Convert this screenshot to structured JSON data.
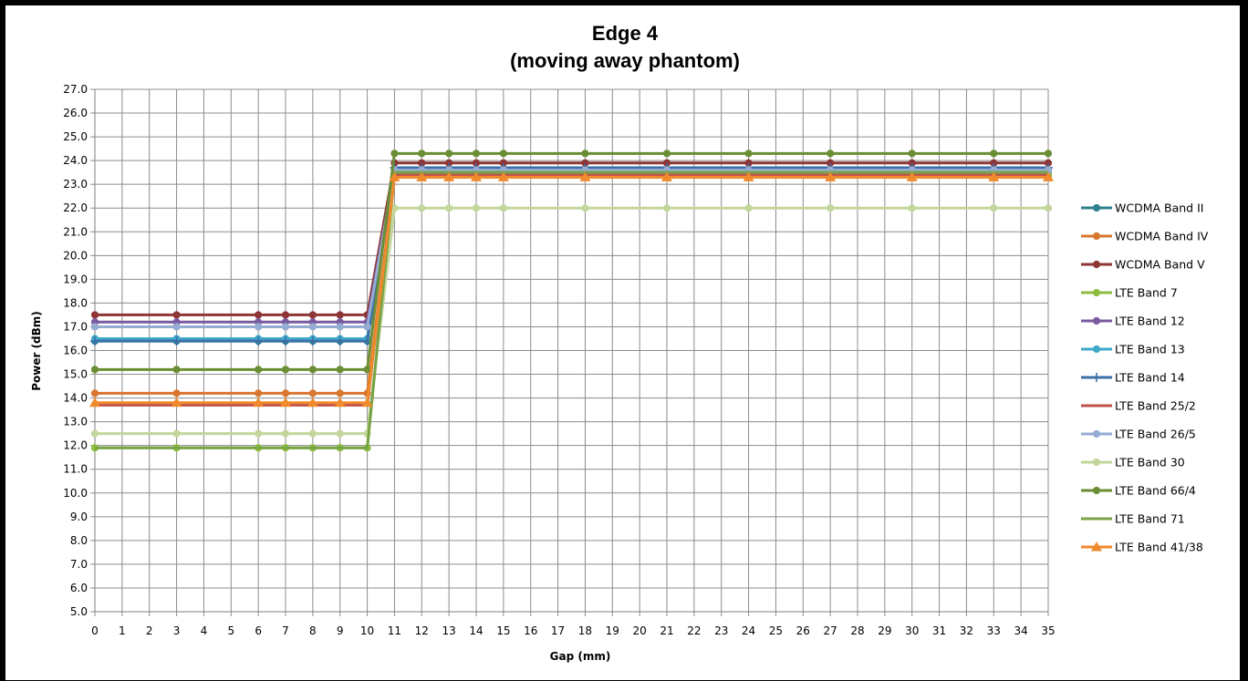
{
  "chart_data": {
    "type": "line",
    "title": "Edge 4",
    "subtitle": "(moving away phantom)",
    "xlabel": "Gap (mm)",
    "ylabel": "Power (dBm)",
    "ylim": [
      5.0,
      27.0
    ],
    "ytick_step": 1.0,
    "categories": [
      "0",
      "1",
      "2",
      "3",
      "4",
      "5",
      "6",
      "7",
      "8",
      "9",
      "10",
      "11",
      "12",
      "13",
      "14",
      "15",
      "16",
      "17",
      "18",
      "19",
      "20",
      "21",
      "22",
      "23",
      "24",
      "25",
      "26",
      "27",
      "28",
      "29",
      "30",
      "31",
      "32",
      "33",
      "34",
      "35"
    ],
    "grid": true,
    "legend_position": "right",
    "series": [
      {
        "name": "WCDMA Band II",
        "color": "#2e7f8f",
        "marker": "circle",
        "x": [
          0,
          3,
          6,
          7,
          8,
          9,
          10,
          11,
          12,
          13,
          14,
          15,
          18,
          21,
          24,
          27,
          30,
          33,
          35
        ],
        "y": [
          16.4,
          16.4,
          16.4,
          16.4,
          16.4,
          16.4,
          16.4,
          23.5,
          23.5,
          23.5,
          23.5,
          23.5,
          23.5,
          23.5,
          23.5,
          23.5,
          23.5,
          23.5,
          23.5
        ]
      },
      {
        "name": "WCDMA Band IV",
        "color": "#d9762f",
        "marker": "circle",
        "x": [
          0,
          3,
          6,
          7,
          8,
          9,
          10,
          11,
          12,
          13,
          14,
          15,
          18,
          21,
          24,
          27,
          30,
          33,
          35
        ],
        "y": [
          14.2,
          14.2,
          14.2,
          14.2,
          14.2,
          14.2,
          14.2,
          23.3,
          23.3,
          23.3,
          23.3,
          23.3,
          23.3,
          23.3,
          23.3,
          23.3,
          23.3,
          23.3,
          23.3
        ]
      },
      {
        "name": "WCDMA Band V",
        "color": "#8e3535",
        "marker": "circle",
        "x": [
          0,
          3,
          6,
          7,
          8,
          9,
          10,
          11,
          12,
          13,
          14,
          15,
          18,
          21,
          24,
          27,
          30,
          33,
          35
        ],
        "y": [
          17.5,
          17.5,
          17.5,
          17.5,
          17.5,
          17.5,
          17.5,
          23.9,
          23.9,
          23.9,
          23.9,
          23.9,
          23.9,
          23.9,
          23.9,
          23.9,
          23.9,
          23.9,
          23.9
        ]
      },
      {
        "name": "LTE Band 7",
        "color": "#8cbd3f",
        "marker": "circle",
        "x": [
          0,
          3,
          6,
          7,
          8,
          9,
          10,
          11,
          12,
          13,
          14,
          15,
          18,
          21,
          24,
          27,
          30,
          33,
          35
        ],
        "y": [
          11.9,
          11.9,
          11.9,
          11.9,
          11.9,
          11.9,
          11.9,
          23.4,
          23.4,
          23.4,
          23.4,
          23.4,
          23.4,
          23.4,
          23.4,
          23.4,
          23.4,
          23.4,
          23.4
        ]
      },
      {
        "name": "LTE Band 12",
        "color": "#7a5aa0",
        "marker": "circle",
        "x": [
          0,
          3,
          6,
          7,
          8,
          9,
          10,
          11,
          12,
          13,
          14,
          15,
          18,
          21,
          24,
          27,
          30,
          33,
          35
        ],
        "y": [
          17.2,
          17.2,
          17.2,
          17.2,
          17.2,
          17.2,
          17.2,
          23.6,
          23.6,
          23.6,
          23.6,
          23.6,
          23.6,
          23.6,
          23.6,
          23.6,
          23.6,
          23.6,
          23.6
        ]
      },
      {
        "name": "LTE Band 13",
        "color": "#3fa9c9",
        "marker": "circle",
        "x": [
          0,
          3,
          6,
          7,
          8,
          9,
          10,
          11,
          12,
          13,
          14,
          15,
          18,
          21,
          24,
          27,
          30,
          33,
          35
        ],
        "y": [
          16.5,
          16.5,
          16.5,
          16.5,
          16.5,
          16.5,
          16.5,
          23.6,
          23.6,
          23.6,
          23.6,
          23.6,
          23.6,
          23.6,
          23.6,
          23.6,
          23.6,
          23.6,
          23.6
        ]
      },
      {
        "name": "LTE Band 14",
        "color": "#3c6fa8",
        "marker": "plus",
        "x": [
          0,
          3,
          6,
          7,
          8,
          9,
          10,
          11,
          12,
          13,
          14,
          15,
          18,
          21,
          24,
          27,
          30,
          33,
          35
        ],
        "y": [
          16.4,
          16.4,
          16.4,
          16.4,
          16.4,
          16.4,
          16.4,
          23.7,
          23.7,
          23.7,
          23.7,
          23.7,
          23.7,
          23.7,
          23.7,
          23.7,
          23.7,
          23.7,
          23.7
        ]
      },
      {
        "name": "LTE Band 25/2",
        "color": "#c0504d",
        "marker": "none",
        "x": [
          0,
          3,
          6,
          7,
          8,
          9,
          10,
          11,
          12,
          13,
          14,
          15,
          18,
          21,
          24,
          27,
          30,
          33,
          35
        ],
        "y": [
          13.7,
          13.7,
          13.7,
          13.7,
          13.7,
          13.7,
          13.7,
          23.4,
          23.4,
          23.4,
          23.4,
          23.4,
          23.4,
          23.4,
          23.4,
          23.4,
          23.4,
          23.4,
          23.4
        ]
      },
      {
        "name": "LTE Band 26/5",
        "color": "#95acd3",
        "marker": "circle",
        "x": [
          0,
          3,
          6,
          7,
          8,
          9,
          10,
          11,
          12,
          13,
          14,
          15,
          18,
          21,
          24,
          27,
          30,
          33,
          35
        ],
        "y": [
          17.0,
          17.0,
          17.0,
          17.0,
          17.0,
          17.0,
          17.0,
          23.6,
          23.6,
          23.6,
          23.6,
          23.6,
          23.6,
          23.6,
          23.6,
          23.6,
          23.6,
          23.6,
          23.6
        ]
      },
      {
        "name": "LTE Band 30",
        "color": "#c3d69b",
        "marker": "circle",
        "x": [
          0,
          3,
          6,
          7,
          8,
          9,
          10,
          11,
          12,
          13,
          14,
          15,
          18,
          21,
          24,
          27,
          30,
          33,
          35
        ],
        "y": [
          12.5,
          12.5,
          12.5,
          12.5,
          12.5,
          12.5,
          12.5,
          22.0,
          22.0,
          22.0,
          22.0,
          22.0,
          22.0,
          22.0,
          22.0,
          22.0,
          22.0,
          22.0,
          22.0
        ]
      },
      {
        "name": "LTE Band 66/4",
        "color": "#6b8e35",
        "marker": "circle",
        "x": [
          0,
          3,
          6,
          7,
          8,
          9,
          10,
          11,
          12,
          13,
          14,
          15,
          18,
          21,
          24,
          27,
          30,
          33,
          35
        ],
        "y": [
          15.2,
          15.2,
          15.2,
          15.2,
          15.2,
          15.2,
          15.2,
          24.3,
          24.3,
          24.3,
          24.3,
          24.3,
          24.3,
          24.3,
          24.3,
          24.3,
          24.3,
          24.3,
          24.3
        ]
      },
      {
        "name": "LTE Band 71",
        "color": "#77a346",
        "marker": "none",
        "x": [
          0,
          3,
          6,
          7,
          8,
          9,
          10,
          11,
          12,
          13,
          14,
          15,
          18,
          21,
          24,
          27,
          30,
          33,
          35
        ],
        "y": [
          11.9,
          11.9,
          11.9,
          11.9,
          11.9,
          11.9,
          11.9,
          23.5,
          23.5,
          23.5,
          23.5,
          23.5,
          23.5,
          23.5,
          23.5,
          23.5,
          23.5,
          23.5,
          23.5
        ]
      },
      {
        "name": "LTE Band 41/38",
        "color": "#f08a2c",
        "marker": "triangle",
        "x": [
          0,
          3,
          6,
          7,
          8,
          9,
          10,
          11,
          12,
          13,
          14,
          15,
          18,
          21,
          24,
          27,
          30,
          33,
          35
        ],
        "y": [
          13.8,
          13.8,
          13.8,
          13.8,
          13.8,
          13.8,
          13.8,
          23.3,
          23.3,
          23.3,
          23.3,
          23.3,
          23.3,
          23.3,
          23.3,
          23.3,
          23.3,
          23.3,
          23.3
        ]
      }
    ]
  }
}
